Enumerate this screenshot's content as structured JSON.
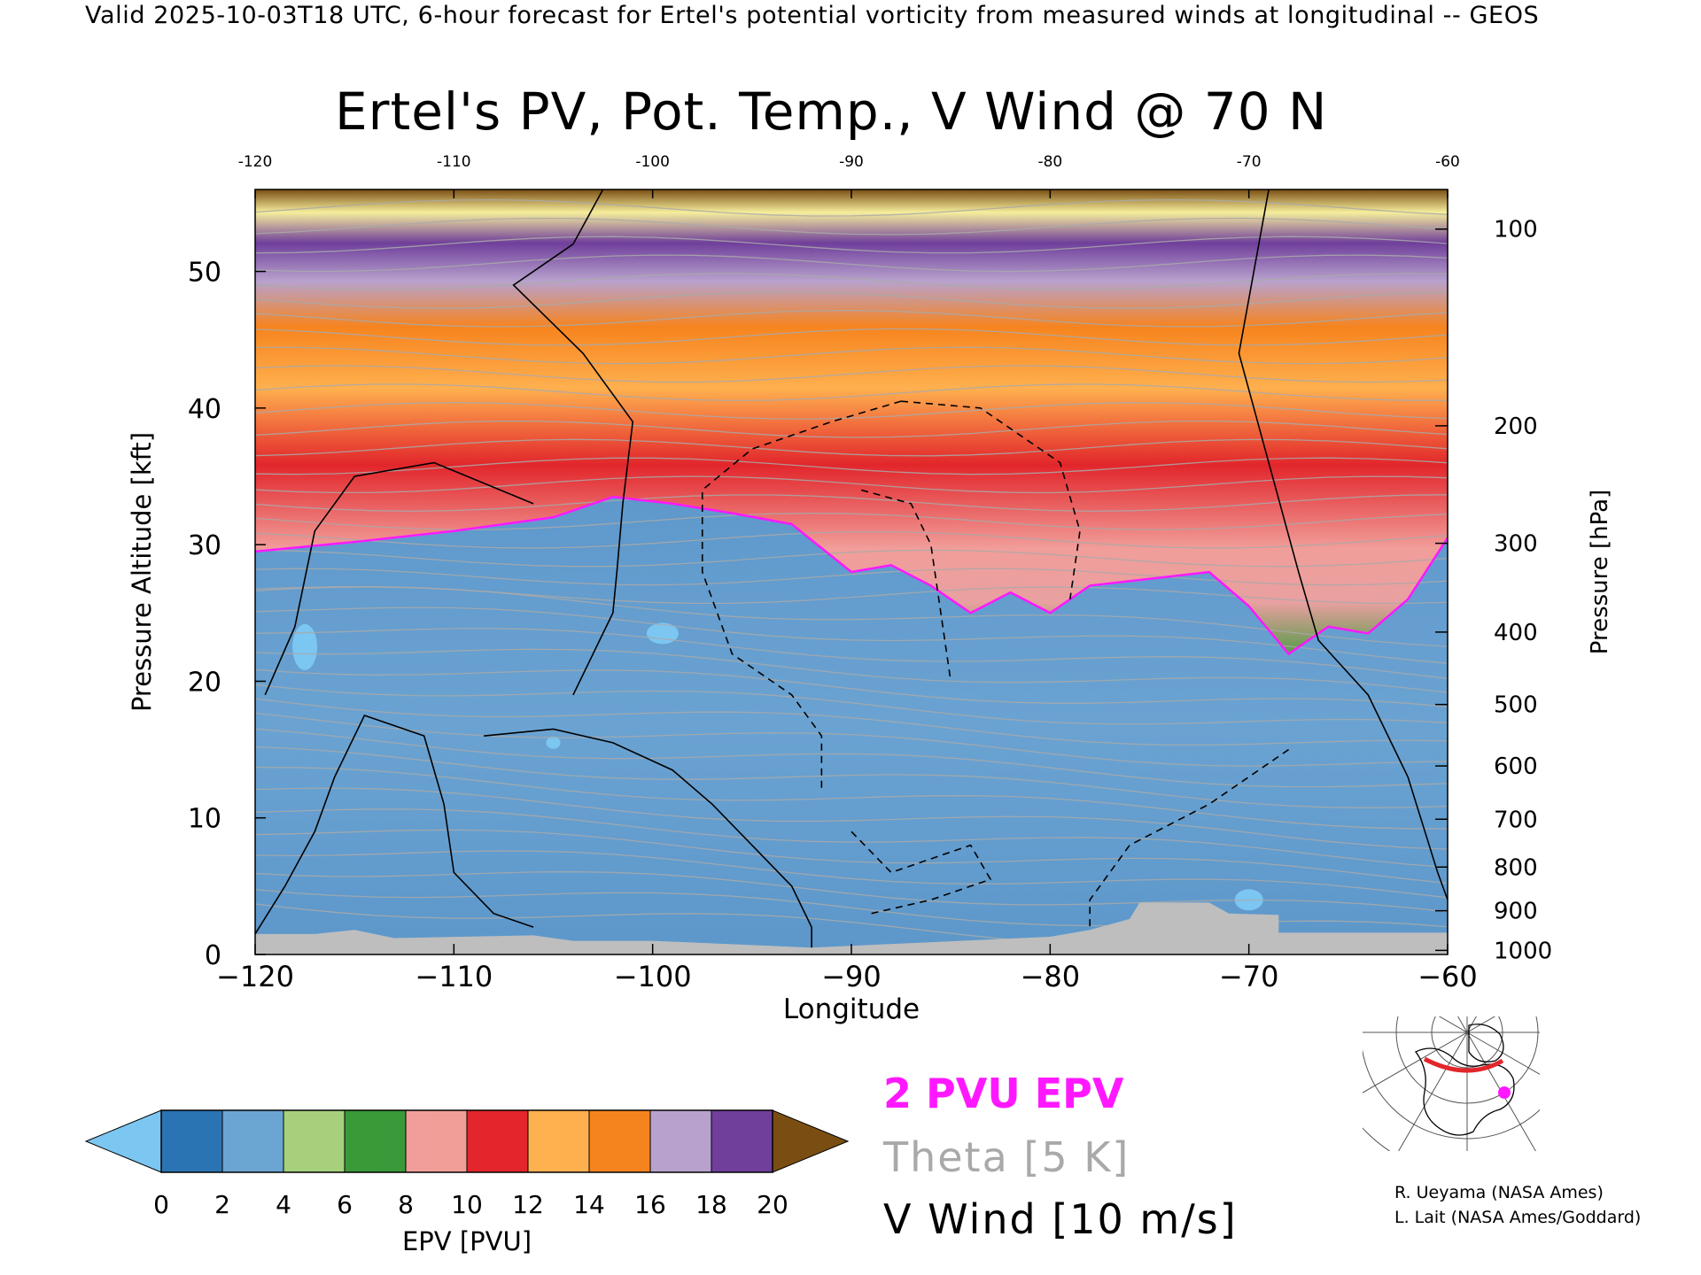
{
  "header": {
    "valid_line": "Valid 2025-10-03T18 UTC, 6-hour forecast for Ertel's potential vorticity from measured winds at longitudinal -- GEOS",
    "title": "Ertel's PV, Pot. Temp., V Wind @ 70 N"
  },
  "chart_data": {
    "type": "heatmap",
    "title": "Ertel's PV, Pot. Temp., V Wind @ 70 N",
    "xlabel": "Longitude",
    "ylabel": "Pressure Altitude [kft]",
    "y2label": "Pressure [hPa]",
    "xlim": [
      -120,
      -60
    ],
    "ylim": [
      0,
      56
    ],
    "x_ticks": [
      -120,
      -110,
      -100,
      -90,
      -80,
      -70,
      -60
    ],
    "x_top_ticks": [
      "-120",
      "-110",
      "-100",
      "-90",
      "-80",
      "-70",
      "-60"
    ],
    "y_ticks": [
      0,
      10,
      20,
      30,
      40,
      50
    ],
    "pressure_ticks": [
      {
        "label": "100",
        "kft": 53.1
      },
      {
        "label": "200",
        "kft": 38.7
      },
      {
        "label": "300",
        "kft": 30.1
      },
      {
        "label": "400",
        "kft": 23.6
      },
      {
        "label": "500",
        "kft": 18.3
      },
      {
        "label": "600",
        "kft": 13.8
      },
      {
        "label": "700",
        "kft": 9.9
      },
      {
        "label": "800",
        "kft": 6.4
      },
      {
        "label": "900",
        "kft": 3.2
      },
      {
        "label": "1000",
        "kft": 0.3
      }
    ],
    "epv_2pvu_height_kft": [
      [
        -120,
        29.5
      ],
      [
        -115,
        30.2
      ],
      [
        -110,
        31.0
      ],
      [
        -105,
        32.0
      ],
      [
        -102,
        33.5
      ],
      [
        -99,
        33.0
      ],
      [
        -96,
        32.3
      ],
      [
        -93,
        31.5
      ],
      [
        -90,
        28.0
      ],
      [
        -88,
        28.5
      ],
      [
        -86,
        27.0
      ],
      [
        -84,
        25.0
      ],
      [
        -82,
        26.5
      ],
      [
        -80,
        25.0
      ],
      [
        -78,
        27.0
      ],
      [
        -75,
        27.5
      ],
      [
        -72,
        28.0
      ],
      [
        -70,
        25.5
      ],
      [
        -68,
        22.0
      ],
      [
        -66,
        24.0
      ],
      [
        -64,
        23.5
      ],
      [
        -62,
        26.0
      ],
      [
        -60,
        30.5
      ]
    ],
    "colorbar": {
      "label": "EPV [PVU]",
      "ticks": [
        "0",
        "2",
        "4",
        "6",
        "8",
        "10",
        "12",
        "14",
        "16",
        "18",
        "20"
      ],
      "colors": [
        "#2b74b3",
        "#6ba6d3",
        "#a6d07b",
        "#3a9a38",
        "#f19e9a",
        "#e2262b",
        "#ffb04f",
        "#f6841e",
        "#b8a2cd",
        "#6f3f9b",
        "#f6ee9c"
      ],
      "under_color": "#7cc6f2",
      "over_color": "#7a4e13",
      "ground_color": "#bebebe"
    }
  },
  "legend": {
    "epv_label": "2 PVU EPV",
    "epv_color": "#ff18ff",
    "theta_label": "Theta [5 K]",
    "theta_color": "#a9a9a9",
    "vwind_label": "V Wind [10 m/s]"
  },
  "credits": {
    "line1": "R. Ueyama (NASA Ames)",
    "line2": "L. Lait (NASA Ames/Goddard)"
  }
}
